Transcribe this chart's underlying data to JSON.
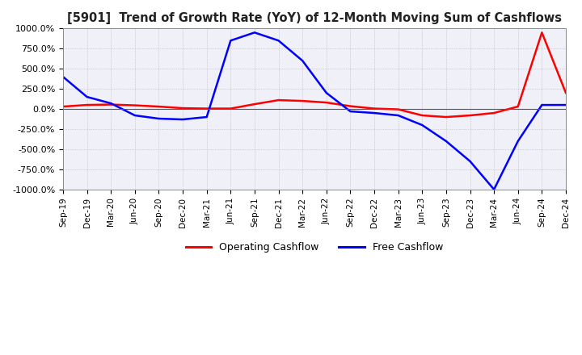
{
  "title": "[5901]  Trend of Growth Rate (YoY) of 12-Month Moving Sum of Cashflows",
  "ylim": [
    -1000,
    1000
  ],
  "yticks": [
    -1000,
    -750,
    -500,
    -250,
    0,
    250,
    500,
    750,
    1000
  ],
  "legend_labels": [
    "Operating Cashflow",
    "Free Cashflow"
  ],
  "legend_colors": [
    "red",
    "blue"
  ],
  "background_color": "#ffffff",
  "grid_color": "#aaaaaa",
  "x_labels": [
    "Sep-19",
    "Dec-19",
    "Mar-20",
    "Jun-20",
    "Sep-20",
    "Dec-20",
    "Mar-21",
    "Jun-21",
    "Sep-21",
    "Dec-21",
    "Mar-22",
    "Jun-22",
    "Sep-22",
    "Dec-22",
    "Mar-23",
    "Jun-23",
    "Sep-23",
    "Dec-23",
    "Mar-24",
    "Jun-24",
    "Sep-24",
    "Dec-24"
  ],
  "operating_cashflow": [
    30,
    50,
    55,
    45,
    30,
    10,
    5,
    5,
    60,
    110,
    100,
    80,
    35,
    5,
    -5,
    -80,
    -100,
    -80,
    -50,
    30,
    950,
    200
  ],
  "free_cashflow": [
    400,
    150,
    70,
    -80,
    -120,
    -130,
    -100,
    850,
    950,
    850,
    600,
    200,
    -30,
    -50,
    -80,
    -200,
    -400,
    -650,
    -1000,
    -400,
    50,
    50
  ]
}
